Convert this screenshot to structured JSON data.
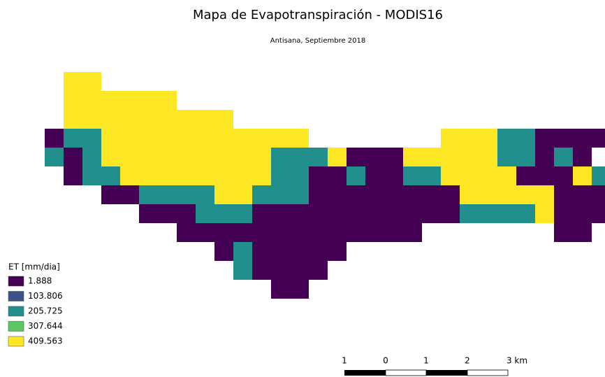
{
  "title": "Mapa de Evapotranspiración - MODIS16",
  "subtitle": "Antisana, Septiembre 2018",
  "legend": {
    "title": "ET [mm/dia]",
    "items": [
      {
        "label": "1.888",
        "color": "#440154"
      },
      {
        "label": "103.806",
        "color": "#3b528b"
      },
      {
        "label": "205.725",
        "color": "#21908d"
      },
      {
        "label": "307.644",
        "color": "#5dc863"
      },
      {
        "label": "409.563",
        "color": "#fde725"
      }
    ]
  },
  "scale_bar": {
    "labels": [
      "1",
      "0",
      "1",
      "2",
      "3 km"
    ]
  }
}
